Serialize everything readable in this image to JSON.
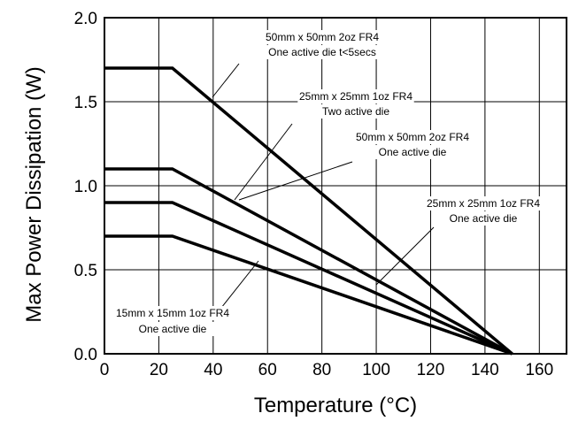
{
  "chart_data": {
    "type": "line",
    "xlabel": "Temperature (°C)",
    "ylabel": "Max Power Dissipation (W)",
    "xlim": [
      0,
      170
    ],
    "ylim": [
      0,
      2.0
    ],
    "xticks": [
      0,
      20,
      40,
      60,
      80,
      100,
      120,
      140,
      160
    ],
    "yticks": [
      0.0,
      0.5,
      1.0,
      1.5,
      2.0
    ],
    "ytick_labels": [
      "0.0",
      "0.5",
      "1.0",
      "1.5",
      "2.0"
    ],
    "grid": true,
    "line_color": "#000000",
    "series": [
      {
        "x": [
          0,
          25,
          150
        ],
        "y": [
          1.7,
          1.7,
          0
        ]
      },
      {
        "x": [
          0,
          25,
          150
        ],
        "y": [
          1.1,
          1.1,
          0
        ]
      },
      {
        "x": [
          0,
          25,
          150
        ],
        "y": [
          0.9,
          0.9,
          0
        ]
      },
      {
        "x": [
          0,
          25,
          150
        ],
        "y": [
          0.7,
          0.7,
          0
        ]
      }
    ],
    "annotations": [
      {
        "lines": [
          "50mm x 50mm 2oz FR4",
          "One active die t<5secs"
        ]
      },
      {
        "lines": [
          "25mm x 25mm 1oz FR4",
          "Two active die"
        ]
      },
      {
        "lines": [
          "50mm x 50mm 2oz FR4",
          "One active die"
        ]
      },
      {
        "lines": [
          "25mm x 25mm 1oz FR4",
          "One active die"
        ]
      },
      {
        "lines": [
          "15mm x 15mm 1oz FR4",
          "One active die"
        ]
      }
    ]
  }
}
